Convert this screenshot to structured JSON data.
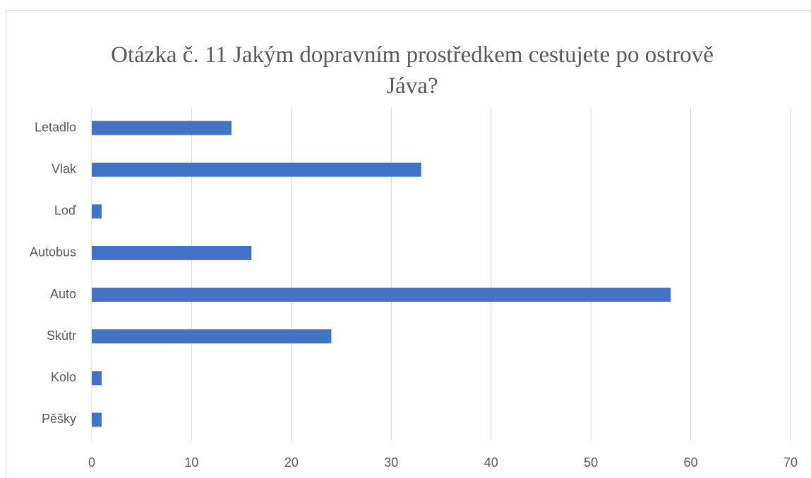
{
  "chart_data": {
    "type": "bar",
    "orientation": "horizontal",
    "title": "Otázka č. 11 Jakým dopravním prostředkem cestujete po ostrově Jáva?",
    "categories": [
      "Letadlo",
      "Vlak",
      "Loď",
      "Autobus",
      "Auto",
      "Skútr",
      "Kolo",
      "Pěšky"
    ],
    "values": [
      14,
      33,
      1,
      16,
      58,
      24,
      1,
      1
    ],
    "color": "#4472c4",
    "xlim": [
      0,
      70
    ],
    "xticks": [
      0,
      10,
      20,
      30,
      40,
      50,
      60,
      70
    ],
    "grid": true
  }
}
